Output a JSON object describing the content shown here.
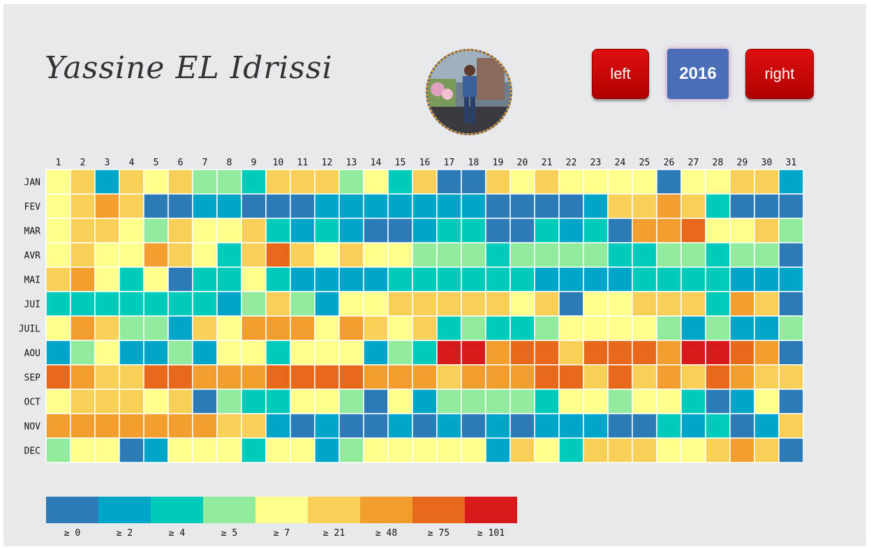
{
  "header": {
    "title": "Yassine EL Idrissi",
    "left_label": "left",
    "year": "2016",
    "right_label": "right"
  },
  "chart_data": {
    "type": "heatmap",
    "x_labels": [
      "1",
      "2",
      "3",
      "4",
      "5",
      "6",
      "7",
      "8",
      "9",
      "10",
      "11",
      "12",
      "13",
      "14",
      "15",
      "16",
      "17",
      "18",
      "19",
      "20",
      "21",
      "22",
      "23",
      "24",
      "25",
      "26",
      "27",
      "28",
      "29",
      "30",
      "31"
    ],
    "y_labels": [
      "JAN",
      "FEV",
      "MAR",
      "AVR",
      "MAI",
      "JUI",
      "JUIL",
      "AOU",
      "SEP",
      "OCT",
      "NOV",
      "DEC"
    ],
    "colors": [
      "#2c7bb6",
      "#00a6ca",
      "#00ccbc",
      "#90eb9d",
      "#ffff8c",
      "#f9d057",
      "#f29e2e",
      "#e76818",
      "#d7191c"
    ],
    "legend_labels": [
      "≥ 0",
      "≥ 2",
      "≥ 4",
      "≥ 5",
      "≥ 7",
      "≥ 21",
      "≥ 48",
      "≥ 75",
      "≥ 101"
    ],
    "bins": [
      [
        4,
        5,
        1,
        5,
        4,
        5,
        3,
        3,
        2,
        5,
        5,
        5,
        3,
        4,
        2,
        5,
        0,
        0,
        5,
        4,
        5,
        4,
        4,
        4,
        4,
        0,
        4,
        4,
        5,
        5,
        1
      ],
      [
        4,
        5,
        6,
        5,
        0,
        0,
        1,
        1,
        0,
        0,
        0,
        1,
        1,
        1,
        1,
        1,
        1,
        1,
        0,
        0,
        0,
        0,
        1,
        5,
        5,
        6,
        5,
        2,
        0,
        0,
        0
      ],
      [
        4,
        5,
        5,
        4,
        3,
        5,
        4,
        4,
        5,
        2,
        1,
        2,
        1,
        0,
        0,
        1,
        2,
        2,
        0,
        0,
        2,
        1,
        2,
        0,
        6,
        6,
        7,
        4,
        4,
        5,
        3
      ],
      [
        4,
        5,
        4,
        4,
        6,
        5,
        4,
        2,
        5,
        7,
        5,
        4,
        5,
        4,
        4,
        3,
        3,
        3,
        2,
        3,
        3,
        3,
        3,
        2,
        2,
        3,
        3,
        2,
        3,
        3,
        0
      ],
      [
        5,
        6,
        4,
        2,
        4,
        0,
        2,
        2,
        4,
        2,
        1,
        1,
        1,
        1,
        2,
        2,
        2,
        2,
        2,
        2,
        1,
        1,
        1,
        1,
        2,
        2,
        2,
        2,
        1,
        1,
        1
      ],
      [
        2,
        2,
        2,
        2,
        2,
        2,
        2,
        1,
        3,
        5,
        3,
        1,
        4,
        4,
        5,
        5,
        5,
        5,
        5,
        4,
        5,
        0,
        4,
        4,
        5,
        5,
        5,
        2,
        6,
        5,
        0
      ],
      [
        4,
        6,
        5,
        3,
        3,
        1,
        5,
        4,
        6,
        6,
        6,
        4,
        6,
        5,
        4,
        5,
        2,
        3,
        2,
        2,
        3,
        4,
        4,
        4,
        4,
        3,
        1,
        3,
        1,
        1,
        3
      ],
      [
        1,
        3,
        4,
        1,
        1,
        3,
        1,
        4,
        4,
        2,
        4,
        4,
        4,
        1,
        3,
        2,
        8,
        8,
        6,
        7,
        7,
        5,
        7,
        7,
        7,
        6,
        8,
        8,
        7,
        6,
        0
      ],
      [
        7,
        6,
        5,
        5,
        7,
        7,
        6,
        6,
        6,
        7,
        7,
        7,
        7,
        6,
        6,
        6,
        5,
        6,
        6,
        6,
        7,
        7,
        5,
        7,
        5,
        6,
        5,
        7,
        6,
        5,
        5
      ],
      [
        4,
        5,
        5,
        5,
        4,
        5,
        0,
        3,
        2,
        2,
        4,
        4,
        3,
        0,
        4,
        1,
        3,
        3,
        3,
        3,
        2,
        4,
        4,
        3,
        4,
        4,
        2,
        0,
        1,
        4,
        0
      ],
      [
        6,
        6,
        6,
        6,
        6,
        6,
        6,
        5,
        5,
        1,
        0,
        1,
        0,
        0,
        1,
        0,
        1,
        0,
        1,
        0,
        1,
        1,
        1,
        0,
        0,
        2,
        1,
        2,
        0,
        1,
        5
      ],
      [
        3,
        4,
        4,
        0,
        1,
        4,
        4,
        4,
        2,
        4,
        4,
        1,
        3,
        4,
        4,
        4,
        4,
        4,
        1,
        5,
        4,
        2,
        5,
        5,
        5,
        4,
        4,
        5,
        6,
        5,
        0
      ]
    ]
  }
}
